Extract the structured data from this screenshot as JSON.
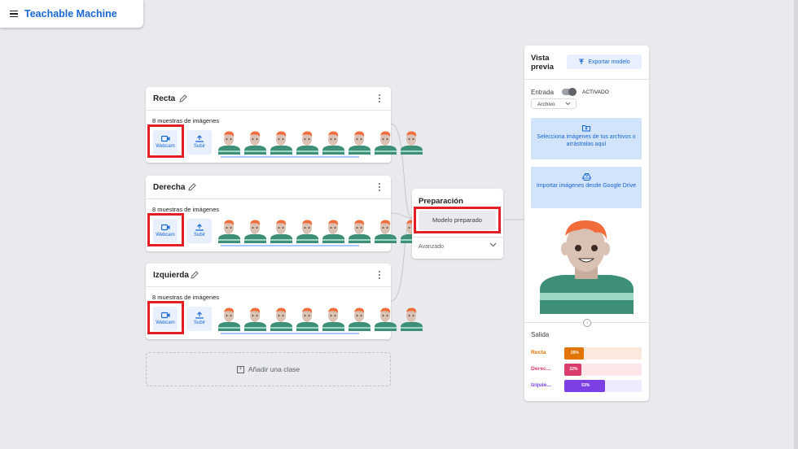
{
  "app": {
    "title": "Teachable Machine",
    "menu_icon": "hamburger-menu-icon"
  },
  "classes": [
    {
      "name": "Recta",
      "samples_label": "8 muestras de imágenes",
      "webcam_label": "Webcam",
      "upload_label": "Subir"
    },
    {
      "name": "Derecha",
      "samples_label": "8 muestras de imágenes",
      "webcam_label": "Webcam",
      "upload_label": "Subir"
    },
    {
      "name": "Izquierda",
      "samples_label": "8 muestras de imágenes",
      "webcam_label": "Webcam",
      "upload_label": "Subir"
    }
  ],
  "add_class_label": "Añadir una clase",
  "training": {
    "title": "Preparación",
    "button_label": "Modelo preparado",
    "advanced_label": "Avanzado"
  },
  "preview": {
    "title": "Vista previa",
    "export_label": "Exportar modelo",
    "input_label": "Entrada",
    "toggle_state": "ACTIVADO",
    "source_value": "Archivo",
    "upload_tile_label": "Selecciona imágenes de tus archivos o arrástralas aquí",
    "drive_tile_label": "Importar imágenes desde Google Drive",
    "output_label": "Salida",
    "outputs": [
      {
        "name": "Recta",
        "percent": 25,
        "percent_label": "25%",
        "color": "#e37400",
        "track": "#fce8dc"
      },
      {
        "name": "Derec...",
        "percent": 22,
        "percent_label": "22%",
        "color": "#d93d6b",
        "track": "#fce6ea"
      },
      {
        "name": "Izquie...",
        "percent": 53,
        "percent_label": "53%",
        "color": "#7b3fe4",
        "track": "#efeafc"
      }
    ]
  },
  "colors": {
    "accent": "#1967d2",
    "highlight": "#e31e24",
    "tile": "#e8f0fe"
  }
}
